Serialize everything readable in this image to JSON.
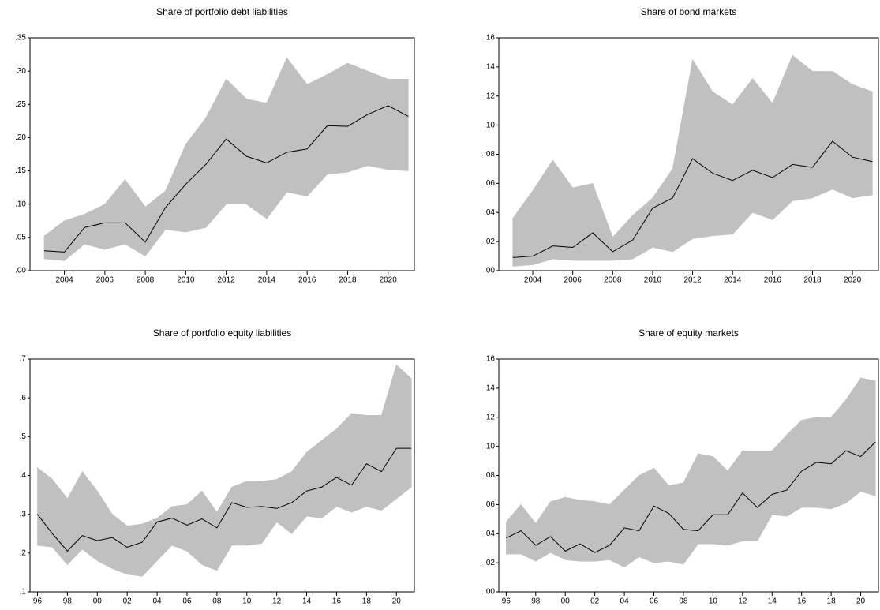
{
  "chart_data": [
    {
      "type": "line",
      "title": "Share of portfolio debt liabilities",
      "x": [
        2003,
        2004,
        2005,
        2006,
        2007,
        2008,
        2009,
        2010,
        2011,
        2012,
        2013,
        2014,
        2015,
        2016,
        2017,
        2018,
        2019,
        2020,
        2021
      ],
      "values": [
        0.03,
        0.028,
        0.065,
        0.072,
        0.072,
        0.043,
        0.095,
        0.13,
        0.16,
        0.198,
        0.172,
        0.162,
        0.178,
        0.183,
        0.218,
        0.217,
        0.235,
        0.248,
        0.232
      ],
      "upper": [
        0.052,
        0.075,
        0.085,
        0.1,
        0.137,
        0.096,
        0.12,
        0.19,
        0.23,
        0.288,
        0.258,
        0.252,
        0.32,
        0.28,
        0.295,
        0.312,
        0.3,
        0.288,
        0.288
      ],
      "lower": [
        0.018,
        0.015,
        0.04,
        0.032,
        0.04,
        0.022,
        0.062,
        0.058,
        0.065,
        0.1,
        0.1,
        0.078,
        0.118,
        0.112,
        0.145,
        0.148,
        0.158,
        0.152,
        0.15
      ],
      "color": "#000000",
      "band_color": "#c0c0c0",
      "xlim": [
        2002.3,
        2021.3
      ],
      "xticks": [
        2004,
        2006,
        2008,
        2010,
        2012,
        2014,
        2016,
        2018,
        2020
      ],
      "ylim": [
        0,
        0.35
      ],
      "yticks": [
        {
          "value": 0,
          "label": ".00"
        },
        {
          "value": 0.05,
          "label": ".05"
        },
        {
          "value": 0.1,
          "label": ".10"
        },
        {
          "value": 0.15,
          "label": ".15"
        },
        {
          "value": 0.2,
          "label": ".20"
        },
        {
          "value": 0.25,
          "label": ".25"
        },
        {
          "value": 0.3,
          "label": ".30"
        },
        {
          "value": 0.35,
          "label": ".35"
        }
      ]
    },
    {
      "type": "line",
      "title": "Share of bond markets",
      "x": [
        2003,
        2004,
        2005,
        2006,
        2007,
        2008,
        2009,
        2010,
        2011,
        2012,
        2013,
        2014,
        2015,
        2016,
        2017,
        2018,
        2019,
        2020,
        2021
      ],
      "values": [
        0.009,
        0.01,
        0.017,
        0.016,
        0.026,
        0.013,
        0.021,
        0.043,
        0.05,
        0.077,
        0.067,
        0.062,
        0.069,
        0.064,
        0.073,
        0.071,
        0.089,
        0.078,
        0.075
      ],
      "upper": [
        0.036,
        0.055,
        0.076,
        0.057,
        0.06,
        0.023,
        0.038,
        0.05,
        0.07,
        0.145,
        0.123,
        0.114,
        0.132,
        0.115,
        0.148,
        0.137,
        0.137,
        0.128,
        0.123
      ],
      "lower": [
        0.003,
        0.004,
        0.008,
        0.007,
        0.007,
        0.007,
        0.008,
        0.016,
        0.013,
        0.022,
        0.024,
        0.025,
        0.04,
        0.035,
        0.048,
        0.05,
        0.056,
        0.05,
        0.052
      ],
      "color": "#000000",
      "band_color": "#c0c0c0",
      "xlim": [
        2002.3,
        2021.3
      ],
      "xticks": [
        2004,
        2006,
        2008,
        2010,
        2012,
        2014,
        2016,
        2018,
        2020
      ],
      "ylim": [
        0,
        0.16
      ],
      "yticks": [
        {
          "value": 0,
          "label": ".00"
        },
        {
          "value": 0.02,
          "label": ".02"
        },
        {
          "value": 0.04,
          "label": ".04"
        },
        {
          "value": 0.06,
          "label": ".06"
        },
        {
          "value": 0.08,
          "label": ".08"
        },
        {
          "value": 0.1,
          "label": ".10"
        },
        {
          "value": 0.12,
          "label": ".12"
        },
        {
          "value": 0.14,
          "label": ".14"
        },
        {
          "value": 0.16,
          "label": ".16"
        }
      ]
    },
    {
      "type": "line",
      "title": "Share of portfolio equity liabilities",
      "x": [
        1996,
        1997,
        1998,
        1999,
        2000,
        2001,
        2002,
        2003,
        2004,
        2005,
        2006,
        2007,
        2008,
        2009,
        2010,
        2011,
        2012,
        2013,
        2014,
        2015,
        2016,
        2017,
        2018,
        2019,
        2020,
        2021
      ],
      "values": [
        0.3,
        0.25,
        0.205,
        0.245,
        0.232,
        0.24,
        0.215,
        0.228,
        0.28,
        0.29,
        0.272,
        0.288,
        0.265,
        0.33,
        0.318,
        0.32,
        0.315,
        0.33,
        0.36,
        0.37,
        0.395,
        0.375,
        0.43,
        0.41,
        0.47,
        0.47
      ],
      "upper": [
        0.42,
        0.39,
        0.34,
        0.41,
        0.36,
        0.3,
        0.27,
        0.275,
        0.29,
        0.32,
        0.325,
        0.36,
        0.305,
        0.37,
        0.385,
        0.385,
        0.39,
        0.41,
        0.46,
        0.49,
        0.52,
        0.56,
        0.555,
        0.555,
        0.685,
        0.65
      ],
      "lower": [
        0.22,
        0.215,
        0.17,
        0.21,
        0.18,
        0.16,
        0.145,
        0.14,
        0.18,
        0.22,
        0.205,
        0.17,
        0.155,
        0.22,
        0.22,
        0.225,
        0.28,
        0.25,
        0.295,
        0.29,
        0.32,
        0.305,
        0.32,
        0.31,
        0.34,
        0.37
      ],
      "color": "#000000",
      "band_color": "#c0c0c0",
      "xlim": [
        1995.5,
        2021.2
      ],
      "xticks": [
        {
          "value": 1996,
          "label": "96"
        },
        {
          "value": 1998,
          "label": "98"
        },
        {
          "value": 2000,
          "label": "00"
        },
        {
          "value": 2002,
          "label": "02"
        },
        {
          "value": 2004,
          "label": "04"
        },
        {
          "value": 2006,
          "label": "06"
        },
        {
          "value": 2008,
          "label": "08"
        },
        {
          "value": 2010,
          "label": "10"
        },
        {
          "value": 2012,
          "label": "12"
        },
        {
          "value": 2014,
          "label": "14"
        },
        {
          "value": 2016,
          "label": "16"
        },
        {
          "value": 2018,
          "label": "18"
        },
        {
          "value": 2020,
          "label": "20"
        }
      ],
      "ylim": [
        0.1,
        0.7
      ],
      "yticks": [
        {
          "value": 0.1,
          "label": ".1"
        },
        {
          "value": 0.2,
          "label": ".2"
        },
        {
          "value": 0.3,
          "label": ".3"
        },
        {
          "value": 0.4,
          "label": ".4"
        },
        {
          "value": 0.5,
          "label": ".5"
        },
        {
          "value": 0.6,
          "label": ".6"
        },
        {
          "value": 0.7,
          "label": ".7"
        }
      ]
    },
    {
      "type": "line",
      "title": "Share of equity markets",
      "x": [
        1996,
        1997,
        1998,
        1999,
        2000,
        2001,
        2002,
        2003,
        2004,
        2005,
        2006,
        2007,
        2008,
        2009,
        2010,
        2011,
        2012,
        2013,
        2014,
        2015,
        2016,
        2017,
        2018,
        2019,
        2020,
        2021
      ],
      "values": [
        0.037,
        0.042,
        0.032,
        0.038,
        0.028,
        0.033,
        0.027,
        0.032,
        0.044,
        0.042,
        0.059,
        0.054,
        0.043,
        0.042,
        0.053,
        0.053,
        0.068,
        0.058,
        0.067,
        0.07,
        0.083,
        0.089,
        0.088,
        0.097,
        0.093,
        0.103
      ],
      "upper": [
        0.048,
        0.06,
        0.047,
        0.062,
        0.065,
        0.063,
        0.062,
        0.06,
        0.07,
        0.08,
        0.085,
        0.073,
        0.075,
        0.095,
        0.093,
        0.083,
        0.097,
        0.097,
        0.097,
        0.108,
        0.118,
        0.12,
        0.12,
        0.132,
        0.147,
        0.145
      ],
      "lower": [
        0.026,
        0.026,
        0.021,
        0.027,
        0.022,
        0.021,
        0.021,
        0.022,
        0.017,
        0.024,
        0.02,
        0.021,
        0.019,
        0.033,
        0.033,
        0.032,
        0.035,
        0.035,
        0.053,
        0.052,
        0.058,
        0.058,
        0.057,
        0.061,
        0.069,
        0.066
      ],
      "color": "#000000",
      "band_color": "#c0c0c0",
      "xlim": [
        1995.5,
        2021.2
      ],
      "xticks": [
        {
          "value": 1996,
          "label": "96"
        },
        {
          "value": 1998,
          "label": "98"
        },
        {
          "value": 2000,
          "label": "00"
        },
        {
          "value": 2002,
          "label": "02"
        },
        {
          "value": 2004,
          "label": "04"
        },
        {
          "value": 2006,
          "label": "06"
        },
        {
          "value": 2008,
          "label": "08"
        },
        {
          "value": 2010,
          "label": "10"
        },
        {
          "value": 2012,
          "label": "12"
        },
        {
          "value": 2014,
          "label": "14"
        },
        {
          "value": 2016,
          "label": "16"
        },
        {
          "value": 2018,
          "label": "18"
        },
        {
          "value": 2020,
          "label": "20"
        }
      ],
      "ylim": [
        0,
        0.16
      ],
      "yticks": [
        {
          "value": 0,
          "label": ".00"
        },
        {
          "value": 0.02,
          "label": ".02"
        },
        {
          "value": 0.04,
          "label": ".04"
        },
        {
          "value": 0.06,
          "label": ".06"
        },
        {
          "value": 0.08,
          "label": ".08"
        },
        {
          "value": 0.1,
          "label": ".10"
        },
        {
          "value": 0.12,
          "label": ".12"
        },
        {
          "value": 0.14,
          "label": ".14"
        },
        {
          "value": 0.16,
          "label": ".16"
        }
      ]
    }
  ]
}
